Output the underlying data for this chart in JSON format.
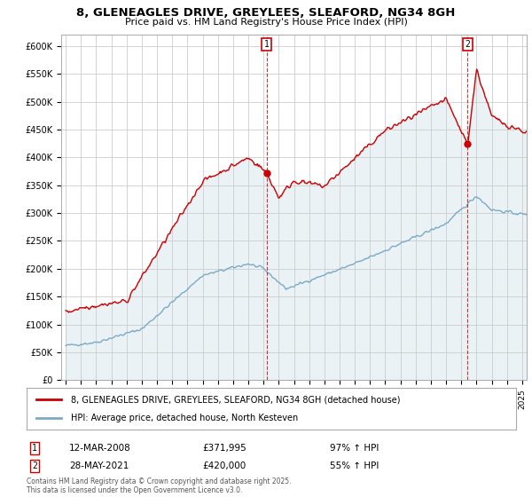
{
  "title_line1": "8, GLENEAGLES DRIVE, GREYLEES, SLEAFORD, NG34 8GH",
  "title_line2": "Price paid vs. HM Land Registry's House Price Index (HPI)",
  "red_label": "8, GLENEAGLES DRIVE, GREYLEES, SLEAFORD, NG34 8GH (detached house)",
  "blue_label": "HPI: Average price, detached house, North Kesteven",
  "footnote": "Contains HM Land Registry data © Crown copyright and database right 2025.\nThis data is licensed under the Open Government Licence v3.0.",
  "marker1_date": "12-MAR-2008",
  "marker1_price": "£371,995",
  "marker1_hpi": "97% ↑ HPI",
  "marker2_date": "28-MAY-2021",
  "marker2_price": "£420,000",
  "marker2_hpi": "55% ↑ HPI",
  "red_color": "#cc0000",
  "blue_color": "#7aaac8",
  "fill_color": "#ddeef8",
  "background_color": "#ffffff",
  "grid_color": "#cccccc",
  "ylim_min": 0,
  "ylim_max": 620000,
  "yticks": [
    0,
    50000,
    100000,
    150000,
    200000,
    250000,
    300000,
    350000,
    400000,
    450000,
    500000,
    550000,
    600000
  ],
  "ytick_labels": [
    "£0",
    "£50K",
    "£100K",
    "£150K",
    "£200K",
    "£250K",
    "£300K",
    "£350K",
    "£400K",
    "£450K",
    "£500K",
    "£550K",
    "£600K"
  ],
  "x_start_year": 1995,
  "x_end_year": 2025,
  "marker1_x": 2008.2,
  "marker2_x": 2021.42
}
